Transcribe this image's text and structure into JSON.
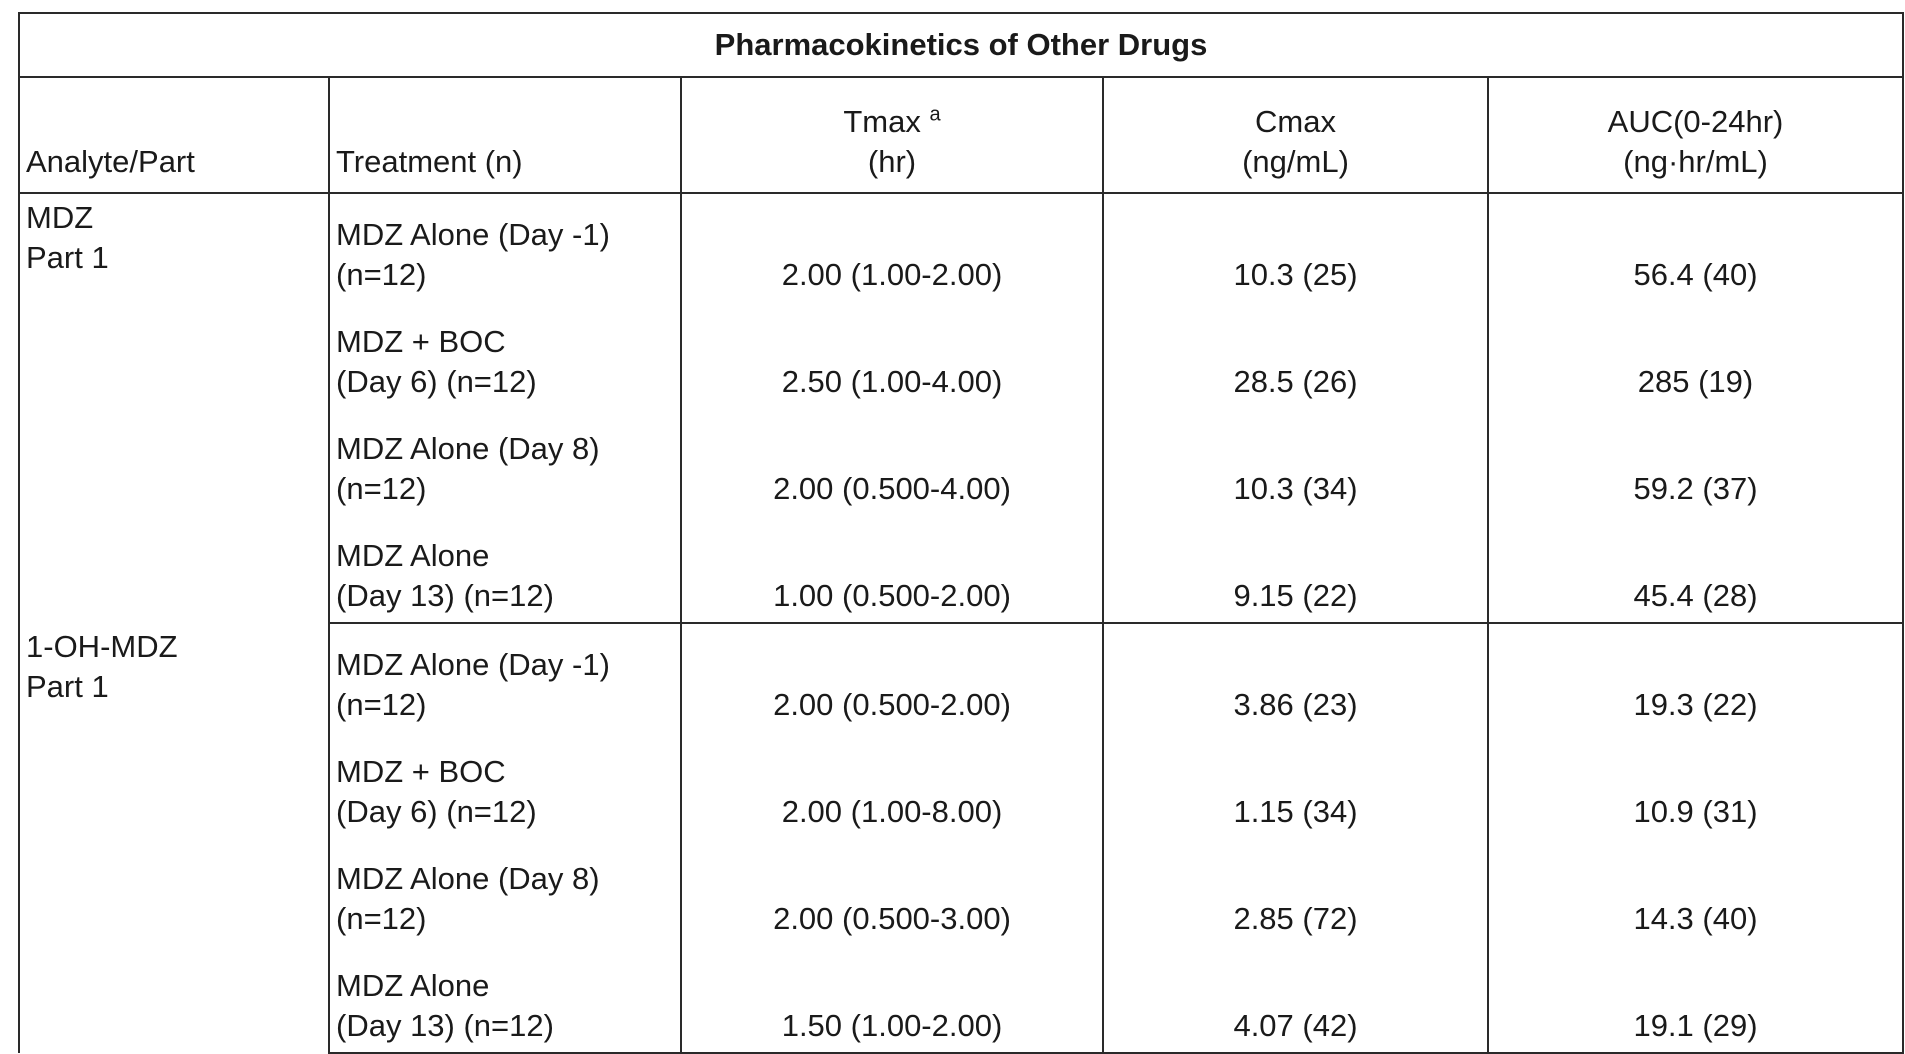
{
  "title": "Pharmacokinetics of Other Drugs",
  "headers": {
    "analyte": "Analyte/Part",
    "treatment": "Treatment (n)",
    "tmax_line1": "Tmax",
    "tmax_sup": "a",
    "tmax_line2": "(hr)",
    "cmax_line1": "Cmax",
    "cmax_line2": "(ng/mL)",
    "auc_line1": "AUC(0-24hr)",
    "auc_line2": "(ng·hr/mL)"
  },
  "groups": [
    {
      "analyte_line1": "MDZ",
      "analyte_line2": "Part 1",
      "rows": [
        {
          "treatment_line1": "MDZ Alone (Day -1)",
          "treatment_line2": "(n=12)",
          "tmax": "2.00 (1.00-2.00)",
          "cmax": "10.3 (25)",
          "auc": "56.4 (40)"
        },
        {
          "treatment_line1": "MDZ + BOC",
          "treatment_line2": "(Day 6) (n=12)",
          "tmax": "2.50 (1.00-4.00)",
          "cmax": "28.5 (26)",
          "auc": "285 (19)"
        },
        {
          "treatment_line1": "MDZ Alone (Day 8)",
          "treatment_line2": "(n=12)",
          "tmax": "2.00 (0.500-4.00)",
          "cmax": "10.3 (34)",
          "auc": "59.2 (37)"
        },
        {
          "treatment_line1": "MDZ Alone",
          "treatment_line2": "(Day 13) (n=12)",
          "tmax": "1.00 (0.500-2.00)",
          "cmax": "9.15 (22)",
          "auc": "45.4 (28)"
        }
      ]
    },
    {
      "analyte_line1": "1-OH-MDZ",
      "analyte_line2": "Part 1",
      "rows": [
        {
          "treatment_line1": "MDZ Alone (Day -1)",
          "treatment_line2": "(n=12)",
          "tmax": "2.00 (0.500-2.00)",
          "cmax": "3.86 (23)",
          "auc": "19.3 (22)"
        },
        {
          "treatment_line1": "MDZ + BOC",
          "treatment_line2": "(Day 6) (n=12)",
          "tmax": "2.00 (1.00-8.00)",
          "cmax": "1.15 (34)",
          "auc": "10.9 (31)"
        },
        {
          "treatment_line1": "MDZ Alone (Day 8)",
          "treatment_line2": "(n=12)",
          "tmax": "2.00 (0.500-3.00)",
          "cmax": "2.85 (72)",
          "auc": "14.3 (40)"
        },
        {
          "treatment_line1": "MDZ Alone",
          "treatment_line2": "(Day 13) (n=12)",
          "tmax": "1.50 (1.00-2.00)",
          "cmax": "4.07 (42)",
          "auc": "19.1 (29)"
        }
      ]
    }
  ]
}
